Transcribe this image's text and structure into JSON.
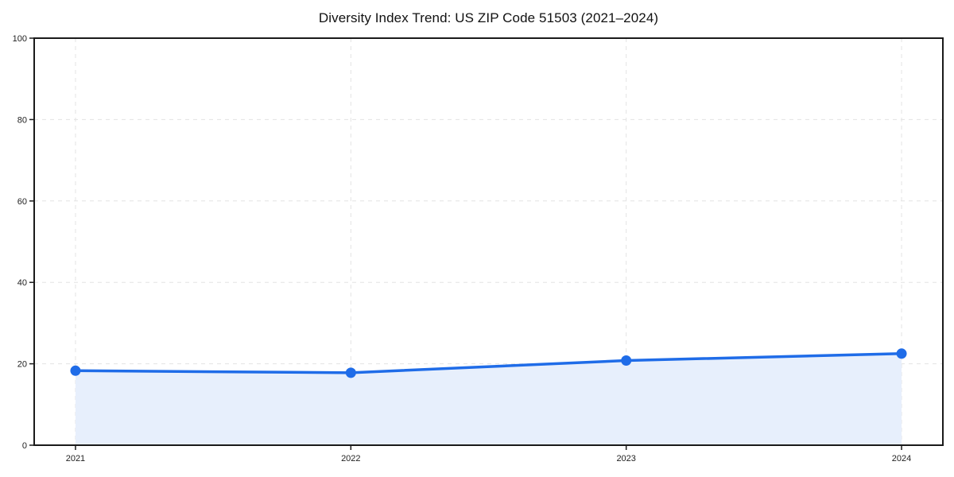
{
  "chart_data": {
    "type": "area",
    "title": "Diversity Index Trend: US ZIP Code 51503 (2021–2024)",
    "categories": [
      "2021",
      "2022",
      "2023",
      "2024"
    ],
    "values": [
      18.3,
      17.8,
      20.8,
      22.5
    ],
    "xlabel": "",
    "ylabel": "",
    "ylim": [
      0,
      100
    ],
    "yticks": [
      0,
      20,
      40,
      60,
      80,
      100
    ],
    "x_margin_fraction": 0.05,
    "grid": true,
    "grid_style": "dashed",
    "legend": "none",
    "colors": {
      "line": "#1f6ce8",
      "marker": "#1f6ce8",
      "area_fill": "#e7effc",
      "grid": "#e3e3e3",
      "axis": "#1a1a1a",
      "tick_label": "#222222",
      "title": "#111111",
      "background": "#ffffff"
    }
  }
}
